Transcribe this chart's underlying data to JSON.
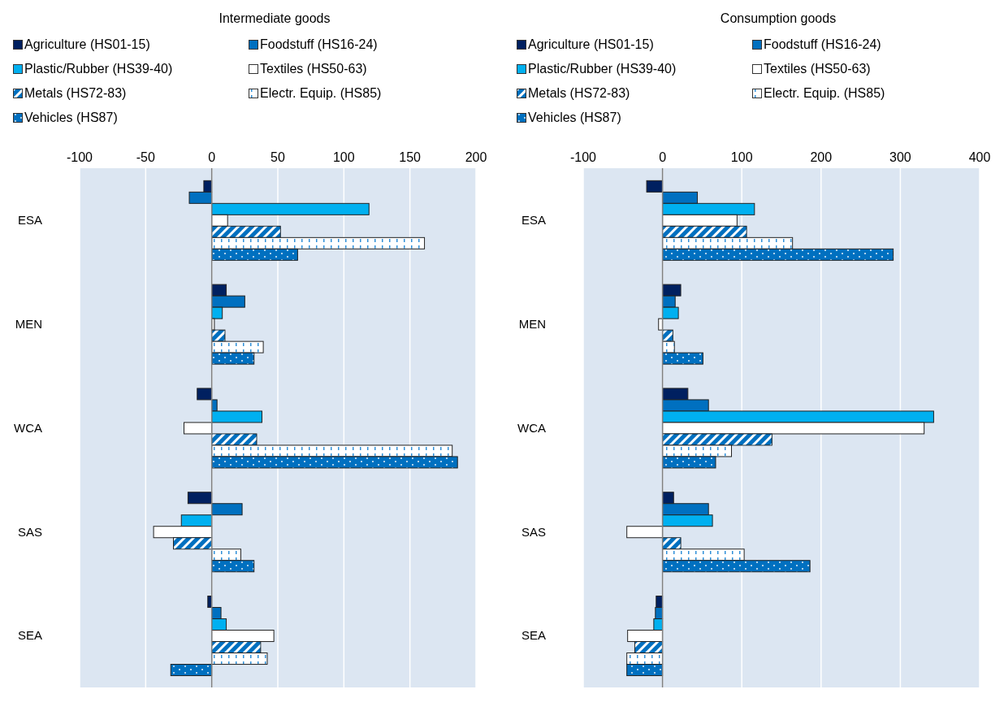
{
  "chart_data": [
    {
      "type": "bar",
      "orientation": "horizontal",
      "title": "Intermediate goods",
      "categories": [
        "ESA",
        "MEN",
        "WCA",
        "SAS",
        "SEA"
      ],
      "xlim": [
        -100,
        200
      ],
      "xticks": [
        -100,
        -50,
        0,
        50,
        100,
        150,
        200
      ],
      "grid": "x",
      "legend": "top",
      "ref_lines": [
        {
          "axis": "x",
          "value": 0,
          "color": "#808080"
        }
      ],
      "series": [
        {
          "name": "Agriculture (HS01-15)",
          "color": "#002060",
          "values": [
            -6,
            11,
            -11,
            -18,
            -3
          ]
        },
        {
          "name": "Foodstuff (HS16-24)",
          "color": "#0070c0",
          "values": [
            -17,
            25,
            4,
            23,
            7
          ]
        },
        {
          "name": "Plastic/Rubber (HS39-40)",
          "color": "#00b0f0",
          "values": [
            119,
            8,
            38,
            -23,
            11
          ]
        },
        {
          "name": "Textiles (HS50-63)",
          "color": "#ffffff",
          "values": [
            12,
            2,
            -21,
            -44,
            47
          ]
        },
        {
          "name": "Metals (HS72-83)",
          "color": "#0070c0",
          "values": [
            52,
            10,
            34,
            -29,
            37
          ]
        },
        {
          "name": "Electr. Equip. (HS85)",
          "color": "#ffffff",
          "values": [
            161,
            39,
            182,
            22,
            42
          ]
        },
        {
          "name": "Vehicles (HS87)",
          "color": "#0070c0",
          "values": [
            65,
            32,
            186,
            32,
            -31
          ]
        }
      ]
    },
    {
      "type": "bar",
      "orientation": "horizontal",
      "title": "Consumption goods",
      "categories": [
        "ESA",
        "MEN",
        "WCA",
        "SAS",
        "SEA"
      ],
      "xlim": [
        -100,
        400
      ],
      "xticks": [
        -100,
        0,
        100,
        200,
        300,
        400
      ],
      "grid": "x",
      "legend": "top",
      "ref_lines": [
        {
          "axis": "x",
          "value": 0,
          "color": "#808080"
        }
      ],
      "series": [
        {
          "name": "Agriculture (HS01-15)",
          "color": "#002060",
          "values": [
            -20,
            23,
            32,
            14,
            -8
          ]
        },
        {
          "name": "Foodstuff (HS16-24)",
          "color": "#0070c0",
          "values": [
            44,
            16,
            58,
            58,
            -9
          ]
        },
        {
          "name": "Plastic/Rubber (HS39-40)",
          "color": "#00b0f0",
          "values": [
            116,
            20,
            342,
            63,
            -11
          ]
        },
        {
          "name": "Textiles (HS50-63)",
          "color": "#ffffff",
          "values": [
            94,
            -5,
            330,
            -45,
            -44
          ]
        },
        {
          "name": "Metals (HS72-83)",
          "color": "#0070c0",
          "values": [
            106,
            13,
            138,
            23,
            -35
          ]
        },
        {
          "name": "Electr. Equip. (HS85)",
          "color": "#ffffff",
          "values": [
            164,
            15,
            87,
            103,
            -45
          ]
        },
        {
          "name": "Vehicles (HS87)",
          "color": "#0070c0",
          "values": [
            291,
            51,
            67,
            186,
            -45
          ]
        }
      ]
    }
  ]
}
